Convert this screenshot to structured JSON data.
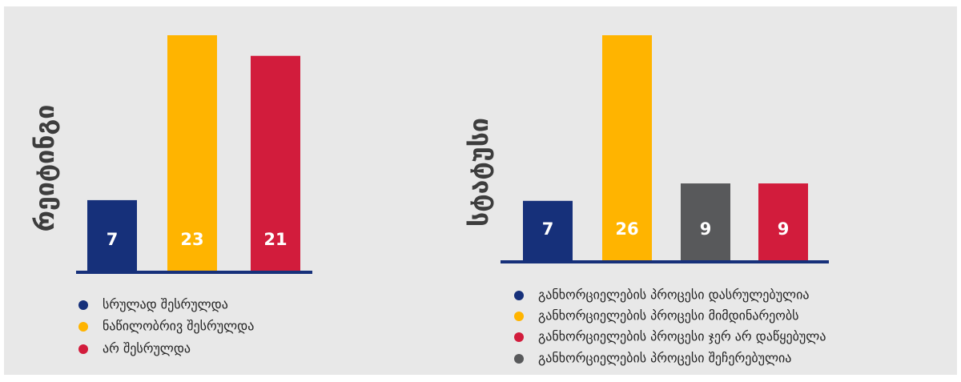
{
  "chart_data": [
    {
      "type": "bar",
      "title": "რეიტინგი",
      "values": [
        7,
        23,
        21
      ],
      "colors": [
        "#16307a",
        "#ffb400",
        "#d21c3c"
      ],
      "ylim": [
        0,
        23
      ],
      "legend": [
        {
          "name": "სრულად შესრულდა",
          "color": "#16307a"
        },
        {
          "name": "ნაწილობრივ შესრულდა",
          "color": "#ffb400"
        },
        {
          "name": "არ შესრულდა",
          "color": "#d21c3c"
        }
      ]
    },
    {
      "type": "bar",
      "title": "სტატუსი",
      "values": [
        7,
        26,
        9,
        9
      ],
      "colors": [
        "#16307a",
        "#ffb400",
        "#58595b",
        "#d21c3c"
      ],
      "ylim": [
        0,
        26
      ],
      "legend": [
        {
          "name": "განხორციელების პროცესი დასრულებულია",
          "color": "#16307a"
        },
        {
          "name": "განხორციელების პროცესი მიმდინარეობს",
          "color": "#ffb400"
        },
        {
          "name": "განხორციელების პროცესი ჯერ არ დაწყებულა",
          "color": "#d21c3c"
        },
        {
          "name": "განხორციელების პროცესი შეჩერებულია",
          "color": "#58595b"
        }
      ]
    }
  ]
}
